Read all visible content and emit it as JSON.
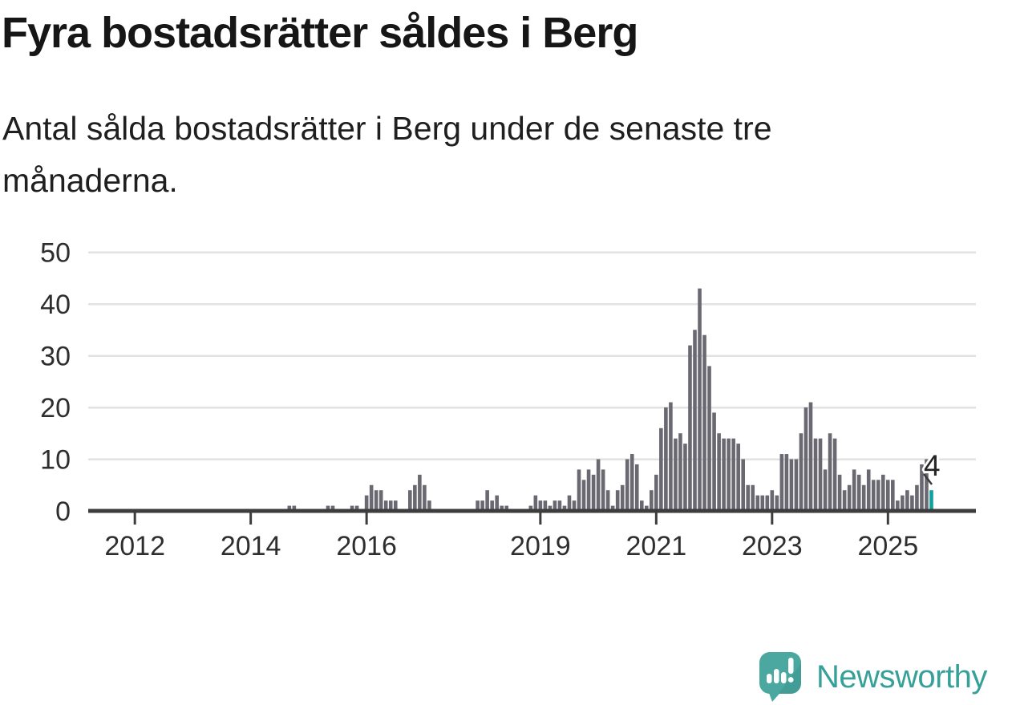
{
  "header": {
    "title": "Fyra bostadsrätter såldes i Berg",
    "subtitle_lines": [
      "Antal sålda bostadsrätter i Berg under de senaste tre",
      "månaderna."
    ]
  },
  "chart_data": {
    "type": "bar",
    "title": "Fyra bostadsrätter såldes i Berg",
    "subtitle": "Antal sålda bostadsrätter i Berg under de senaste tre månaderna.",
    "xlabel": "",
    "ylabel": "",
    "unit": "bostadsrätter per 3 månader",
    "x_start": "2011-04",
    "x_end": "2025-10",
    "frequency": "monthly",
    "values": [
      0,
      0,
      0,
      0,
      0,
      0,
      0,
      0,
      0,
      0,
      0,
      0,
      0,
      0,
      0,
      0,
      0,
      0,
      0,
      0,
      0,
      0,
      0,
      0,
      0,
      0,
      0,
      0,
      0,
      0,
      0,
      0,
      0,
      0,
      0,
      0,
      0,
      0,
      0,
      0,
      0,
      1,
      1,
      0,
      0,
      0,
      0,
      0,
      0,
      1,
      1,
      0,
      0,
      0,
      1,
      1,
      0,
      3,
      5,
      4,
      4,
      2,
      2,
      2,
      0,
      0,
      4,
      5,
      7,
      5,
      2,
      0,
      0,
      0,
      0,
      0,
      0,
      0,
      0,
      0,
      2,
      2,
      4,
      2,
      3,
      1,
      1,
      0,
      0,
      0,
      0,
      1,
      3,
      2,
      2,
      1,
      2,
      2,
      1,
      3,
      2,
      8,
      6,
      8,
      7,
      10,
      8,
      4,
      1,
      4,
      5,
      10,
      11,
      9,
      2,
      1,
      4,
      7,
      16,
      20,
      21,
      14,
      15,
      13,
      32,
      35,
      43,
      34,
      28,
      19,
      15,
      14,
      14,
      14,
      13,
      10,
      5,
      5,
      3,
      3,
      3,
      4,
      3,
      11,
      11,
      10,
      10,
      15,
      20,
      21,
      14,
      14,
      8,
      15,
      14,
      7,
      4,
      5,
      8,
      7,
      5,
      8,
      6,
      6,
      7,
      6,
      6,
      2,
      3,
      4,
      3,
      5,
      9,
      10,
      4
    ],
    "highlight": {
      "index": 174,
      "value": 4,
      "label": "4",
      "period": "2025-10"
    },
    "ylim": [
      0,
      50
    ],
    "yticks": [
      0,
      10,
      20,
      30,
      40,
      50
    ],
    "xticks": [
      2012,
      2014,
      2016,
      2019,
      2021,
      2023,
      2025
    ],
    "grid": true,
    "legend": "none",
    "colors": {
      "bar": "#6a6972",
      "highlight": "#10a09d",
      "axis": "#3d3d3d",
      "gridline": "#e3e1e1",
      "tick_text": "#2e2e2e"
    }
  },
  "annotation": {
    "label": "4"
  },
  "logo": {
    "text": "Newsworthy",
    "text_color": "#36a099",
    "icon_bg": "#4aa8a1",
    "icon_shade": "#3a948d",
    "icon_glyph": "bar-chart-exclamation-speech-bubble"
  }
}
